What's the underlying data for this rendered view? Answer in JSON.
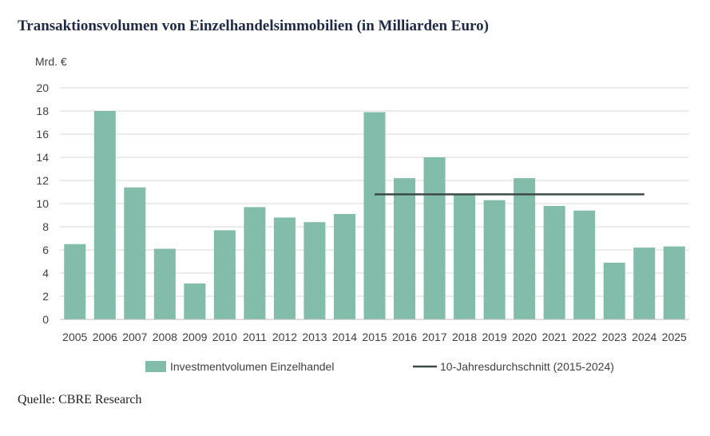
{
  "title": "Transaktionsvolumen von Einzelhandelsimmobilien (in Milliarden Euro)",
  "source": "Quelle: CBRE Research",
  "colors": {
    "bar": "#82bcaa",
    "avg_line": "#3e4a47",
    "grid": "#d9d9d9"
  },
  "chart_data": {
    "type": "bar",
    "ylabel": "Mrd. €",
    "ylim": [
      0,
      20
    ],
    "yticks": [
      0,
      2,
      4,
      6,
      8,
      10,
      12,
      14,
      16,
      18,
      20
    ],
    "grid": true,
    "legend_position": "bottom",
    "categories": [
      "2005",
      "2006",
      "2007",
      "2008",
      "2009",
      "2010",
      "2011",
      "2012",
      "2013",
      "2014",
      "2015",
      "2016",
      "2017",
      "2018",
      "2019",
      "2020",
      "2021",
      "2022",
      "2023",
      "2024",
      "2025"
    ],
    "series": [
      {
        "name": "Investmentvolumen Einzelhandel",
        "type": "bar",
        "values": [
          6.5,
          18.0,
          11.4,
          6.1,
          3.1,
          7.7,
          9.7,
          8.8,
          8.4,
          9.1,
          17.9,
          12.2,
          14.0,
          10.8,
          10.3,
          12.2,
          9.8,
          9.4,
          4.9,
          6.2,
          6.3
        ]
      },
      {
        "name": "10-Jahresdurchschnitt (2015-2024)",
        "type": "line",
        "x_range": [
          "2015",
          "2024"
        ],
        "value": 10.8
      }
    ]
  }
}
